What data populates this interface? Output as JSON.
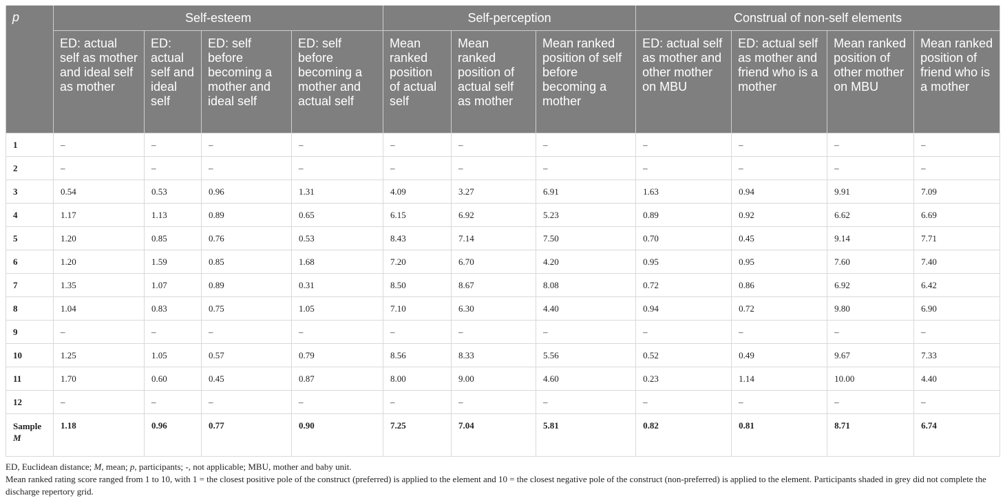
{
  "header": {
    "p_label": "p",
    "groups": [
      "Self-esteem",
      "Self-perception",
      "Construal of non-self elements"
    ],
    "columns": [
      "ED: actual self as mother and ideal self as mother",
      "ED: actual self and ideal self",
      "ED: self before becoming a mother and ideal self",
      "ED: self before becoming a mother and actual self",
      "Mean ranked position of actual self",
      "Mean ranked position of actual self as mother",
      "Mean ranked position of self before becoming a mother",
      "ED: actual self as mother and other mother on MBU",
      "ED: actual self as mother and friend who is a mother",
      "Mean ranked position of other mother on MBU",
      "Mean ranked position of friend who is a mother"
    ]
  },
  "rows": [
    {
      "p": "1",
      "values": [
        "–",
        "–",
        "–",
        "–",
        "–",
        "–",
        "–",
        "–",
        "–",
        "–",
        "–"
      ]
    },
    {
      "p": "2",
      "values": [
        "–",
        "–",
        "–",
        "–",
        "–",
        "–",
        "–",
        "–",
        "–",
        "–",
        "–"
      ]
    },
    {
      "p": "3",
      "values": [
        "0.54",
        "0.53",
        "0.96",
        "1.31",
        "4.09",
        "3.27",
        "6.91",
        "1.63",
        "0.94",
        "9.91",
        "7.09"
      ]
    },
    {
      "p": "4",
      "values": [
        "1.17",
        "1.13",
        "0.89",
        "0.65",
        "6.15",
        "6.92",
        "5.23",
        "0.89",
        "0.92",
        "6.62",
        "6.69"
      ]
    },
    {
      "p": "5",
      "values": [
        "1.20",
        "0.85",
        "0.76",
        "0.53",
        "8.43",
        "7.14",
        "7.50",
        "0.70",
        "0.45",
        "9.14",
        "7.71"
      ]
    },
    {
      "p": "6",
      "values": [
        "1.20",
        "1.59",
        "0.85",
        "1.68",
        "7.20",
        "6.70",
        "4.20",
        "0.95",
        "0.95",
        "7.60",
        "7.40"
      ]
    },
    {
      "p": "7",
      "values": [
        "1.35",
        "1.07",
        "0.89",
        "0.31",
        "8.50",
        "8.67",
        "8.08",
        "0.72",
        "0.86",
        "6.92",
        "6.42"
      ]
    },
    {
      "p": "8",
      "values": [
        "1.04",
        "0.83",
        "0.75",
        "1.05",
        "7.10",
        "6.30",
        "4.40",
        "0.94",
        "0.72",
        "9.80",
        "6.90"
      ]
    },
    {
      "p": "9",
      "values": [
        "–",
        "–",
        "–",
        "–",
        "–",
        "–",
        "–",
        "–",
        "–",
        "–",
        "–"
      ]
    },
    {
      "p": "10",
      "values": [
        "1.25",
        "1.05",
        "0.57",
        "0.79",
        "8.56",
        "8.33",
        "5.56",
        "0.52",
        "0.49",
        "9.67",
        "7.33"
      ]
    },
    {
      "p": "11",
      "values": [
        "1.70",
        "0.60",
        "0.45",
        "0.87",
        "8.00",
        "9.00",
        "4.60",
        "0.23",
        "1.14",
        "10.00",
        "4.40"
      ]
    },
    {
      "p": "12",
      "values": [
        "–",
        "–",
        "–",
        "–",
        "–",
        "–",
        "–",
        "–",
        "–",
        "–",
        "–"
      ]
    }
  ],
  "mean_row": {
    "label_word": "Sample",
    "label_symbol": "M",
    "values": [
      "1.18",
      "0.96",
      "0.77",
      "0.90",
      "7.25",
      "7.04",
      "5.81",
      "0.82",
      "0.81",
      "8.71",
      "6.74"
    ]
  },
  "footnotes": {
    "line1": {
      "a": "ED, Euclidean distance; ",
      "m": "M",
      "b": ", mean; ",
      "p": "p",
      "c": ", participants; -, not applicable; MBU, mother and baby unit."
    },
    "line2": "Mean ranked rating score ranged from 1 to 10, with 1 = the closest positive pole of the construct (preferred) is applied to the element and 10 = the closest negative pole of the construct (non-preferred) is applied to the element. Participants shaded in grey did not complete the discharge repertory grid."
  }
}
